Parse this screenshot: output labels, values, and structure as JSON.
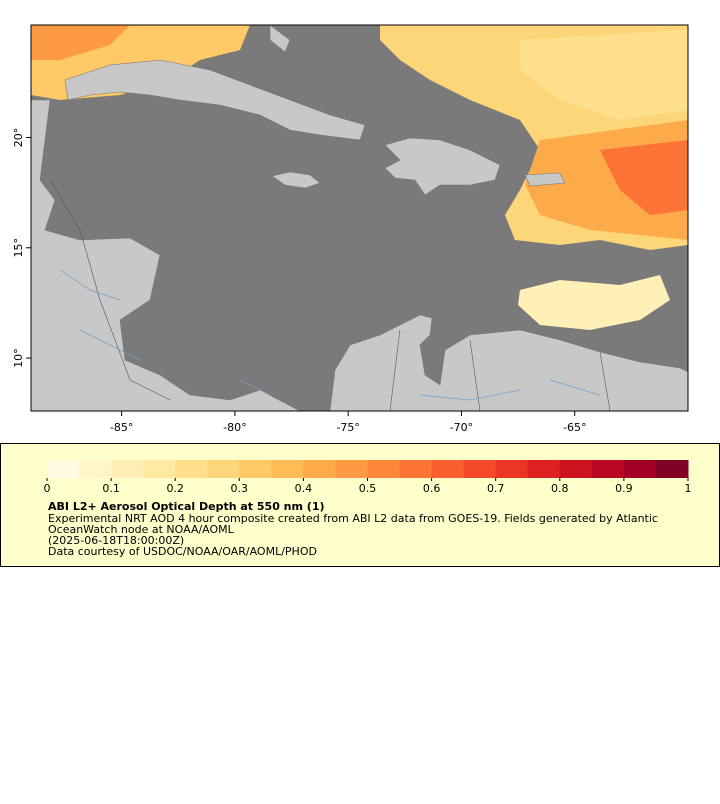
{
  "map": {
    "xlim": [
      -89,
      -60
    ],
    "ylim": [
      7.6,
      25.1
    ],
    "xticks": [
      {
        "value": -85,
        "label": "-85°"
      },
      {
        "value": -80,
        "label": "-80°"
      },
      {
        "value": -75,
        "label": "-75°"
      },
      {
        "value": -70,
        "label": "-70°"
      },
      {
        "value": -65,
        "label": "-65°"
      }
    ],
    "yticks": [
      {
        "value": 10,
        "label": "10°"
      },
      {
        "value": 15,
        "label": "15°"
      },
      {
        "value": 20,
        "label": "20°"
      }
    ]
  },
  "colorbar": {
    "range": [
      0,
      1
    ],
    "ticks": [
      0,
      0.1,
      0.2,
      0.3,
      0.4,
      0.5,
      0.6,
      0.7,
      0.8,
      0.9,
      1
    ],
    "colors": [
      "#fffbe0",
      "#fff5c8",
      "#ffefb4",
      "#ffe8a0",
      "#fee08c",
      "#fed67a",
      "#fec966",
      "#febb56",
      "#fdaa4a",
      "#fd9a42",
      "#fd883b",
      "#fc7435",
      "#fb5f30",
      "#f4492a",
      "#ea3424",
      "#dd2120",
      "#cd1220",
      "#ba0724",
      "#a30026",
      "#800026"
    ]
  },
  "legend": {
    "title": "ABI L2+ Aerosol Optical Depth at 550 nm (1)",
    "lines": [
      "Experimental NRT AOD 4 hour composite created from ABI L2 data from GOES-19. Fields generated by Atlantic",
      "OceanWatch node at NOAA/AOML",
      "(2025-06-18T18:00:00Z)",
      "Data courtesy of USDOC/NOAA/OAR/AOML/PHOD"
    ]
  }
}
